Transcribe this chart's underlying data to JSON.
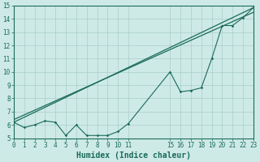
{
  "xlabel": "Humidex (Indice chaleur)",
  "background_color": "#ceeae6",
  "grid_color": "#b8d8d4",
  "line_color": "#1a6b5a",
  "x_ticks": [
    0,
    1,
    2,
    3,
    4,
    5,
    6,
    7,
    8,
    9,
    10,
    11,
    15,
    16,
    17,
    18,
    19,
    20,
    21,
    22,
    23
  ],
  "xlim": [
    0,
    23
  ],
  "ylim": [
    5,
    15
  ],
  "yticks": [
    5,
    6,
    7,
    8,
    9,
    10,
    11,
    12,
    13,
    14,
    15
  ],
  "straight_line1_x": [
    0,
    23
  ],
  "straight_line1_y": [
    6.2,
    14.85
  ],
  "straight_line2_x": [
    0,
    23
  ],
  "straight_line2_y": [
    6.4,
    14.5
  ],
  "zigzag_x": [
    0,
    1,
    2,
    3,
    4,
    5,
    6,
    7,
    8,
    9,
    10,
    11,
    15,
    16,
    17,
    18,
    19,
    20,
    21,
    22,
    23
  ],
  "zigzag_y": [
    6.2,
    5.8,
    6.0,
    6.3,
    6.2,
    5.2,
    6.0,
    5.2,
    5.2,
    5.2,
    5.5,
    6.1,
    10.0,
    8.5,
    8.6,
    8.8,
    11.0,
    13.5,
    13.5,
    14.1,
    14.85
  ],
  "xlabel_fontsize": 7,
  "tick_fontsize": 5.5
}
